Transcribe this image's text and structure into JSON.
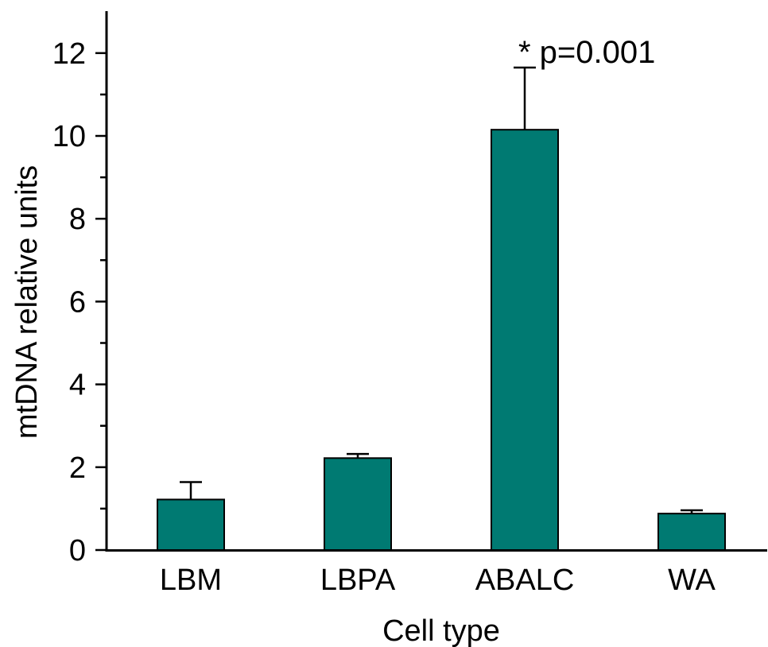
{
  "chart_data": {
    "type": "bar",
    "categories": [
      "LBM",
      "LBPA",
      "ABALC",
      "WA"
    ],
    "values": [
      1.22,
      2.22,
      10.15,
      0.88
    ],
    "errors": [
      0.42,
      0.1,
      1.5,
      0.08
    ],
    "xlabel": "Cell type",
    "ylabel": "mtDNA relative units",
    "ylim": [
      0,
      13
    ],
    "yticks": [
      0,
      2,
      4,
      6,
      8,
      10,
      12
    ],
    "minor_yticks": [
      1,
      3,
      5,
      7,
      9,
      11
    ],
    "grid": false,
    "bar_color": "#007a72",
    "annotations": [
      {
        "category": "ABALC",
        "text": "* p=0.001"
      }
    ]
  }
}
